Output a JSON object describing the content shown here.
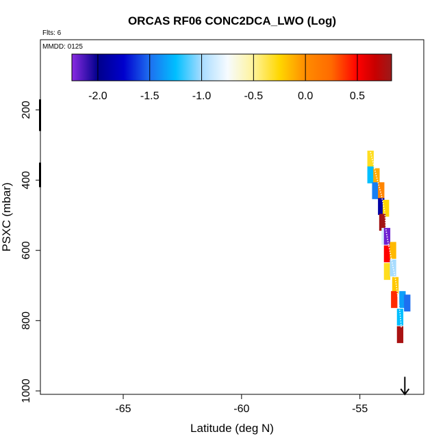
{
  "chart_data": {
    "type": "heatmap",
    "title": "ORCAS RF06 CONC2DCA_LWO (Log)",
    "flights_label": "Flts: 6",
    "date_label": "MMDD: 0125",
    "xlabel": "Latitude (deg N)",
    "ylabel": "PSXC (mbar)",
    "xlim": [
      -68.5,
      -52.3
    ],
    "ylim": [
      1010,
      0
    ],
    "x_ticks": [
      -65,
      -60,
      -55
    ],
    "x_tick_labels": [
      "-65",
      "-60",
      "-55"
    ],
    "y_ticks": [
      200,
      400,
      600,
      800,
      1000
    ],
    "y_tick_labels": [
      "200",
      "400",
      "600",
      "800",
      "1000"
    ],
    "colorbar": {
      "range": [
        -2.25,
        0.83
      ],
      "ticks": [
        -2.0,
        -1.5,
        -1.0,
        -0.5,
        0.0,
        0.5
      ],
      "tick_labels": [
        "-2.0",
        "-1.5",
        "-1.0",
        "-0.5",
        "0.0",
        "0.5"
      ],
      "stops": [
        {
          "v": -2.25,
          "c": "#8a2be2"
        },
        {
          "v": -2.0,
          "c": "#00008b"
        },
        {
          "v": -1.75,
          "c": "#0000cd"
        },
        {
          "v": -1.5,
          "c": "#1e6ff0"
        },
        {
          "v": -1.25,
          "c": "#00bfff"
        },
        {
          "v": -1.0,
          "c": "#a8dcff"
        },
        {
          "v": -0.75,
          "c": "#f6fbff"
        },
        {
          "v": -0.5,
          "c": "#fff39a"
        },
        {
          "v": -0.25,
          "c": "#ffd700"
        },
        {
          "v": 0.0,
          "c": "#ff8c00"
        },
        {
          "v": 0.25,
          "c": "#ff6a00"
        },
        {
          "v": 0.5,
          "c": "#ff0000"
        },
        {
          "v": 0.67,
          "c": "#c80000"
        },
        {
          "v": 0.83,
          "c": "#9b1a1a"
        }
      ]
    },
    "cells": [
      {
        "lat": -54.55,
        "p": 340,
        "value": -0.3
      },
      {
        "lat": -54.55,
        "p": 385,
        "value": -1.25
      },
      {
        "lat": -54.3,
        "p": 390,
        "value": -0.1
      },
      {
        "lat": -54.35,
        "p": 430,
        "value": -1.45
      },
      {
        "lat": -54.1,
        "p": 430,
        "value": 0.05
      },
      {
        "lat": -54.1,
        "p": 475,
        "value": -1.9
      },
      {
        "lat": -53.9,
        "p": 480,
        "value": -0.25
      },
      {
        "lat": -54.05,
        "p": 520,
        "value": 0.8
      },
      {
        "lat": -53.95,
        "p": 560,
        "value": -0.85
      },
      {
        "lat": -53.85,
        "p": 560,
        "value": -2.2
      },
      {
        "lat": -53.85,
        "p": 610,
        "value": 0.5
      },
      {
        "lat": -53.6,
        "p": 600,
        "value": -0.15
      },
      {
        "lat": -53.85,
        "p": 660,
        "value": -0.3
      },
      {
        "lat": -53.6,
        "p": 650,
        "value": -1.0
      },
      {
        "lat": -53.5,
        "p": 700,
        "value": -0.2
      },
      {
        "lat": -53.55,
        "p": 740,
        "value": 0.4
      },
      {
        "lat": -53.2,
        "p": 740,
        "value": -1.35
      },
      {
        "lat": -53.0,
        "p": 750,
        "value": -1.5
      },
      {
        "lat": -53.3,
        "p": 790,
        "value": -1.25
      },
      {
        "lat": -53.3,
        "p": 840,
        "value": 0.78
      }
    ],
    "flight_track": [
      {
        "lat": -54.55,
        "p": 320
      },
      {
        "lat": -54.3,
        "p": 390
      },
      {
        "lat": -54.1,
        "p": 440
      },
      {
        "lat": -53.95,
        "p": 490
      },
      {
        "lat": -53.9,
        "p": 540
      },
      {
        "lat": -53.8,
        "p": 580
      },
      {
        "lat": -53.65,
        "p": 630
      },
      {
        "lat": -53.5,
        "p": 680
      },
      {
        "lat": -53.4,
        "p": 730
      },
      {
        "lat": -53.3,
        "p": 780
      },
      {
        "lat": -53.25,
        "p": 820
      }
    ],
    "arrow": {
      "lat": -53.1,
      "p_top": 960,
      "p_bottom": 1010
    },
    "left_edge_marks": [
      {
        "lat": -68.5,
        "p_top": 170,
        "p_bottom": 260
      },
      {
        "lat": -68.5,
        "p_top": 350,
        "p_bottom": 420
      }
    ]
  }
}
